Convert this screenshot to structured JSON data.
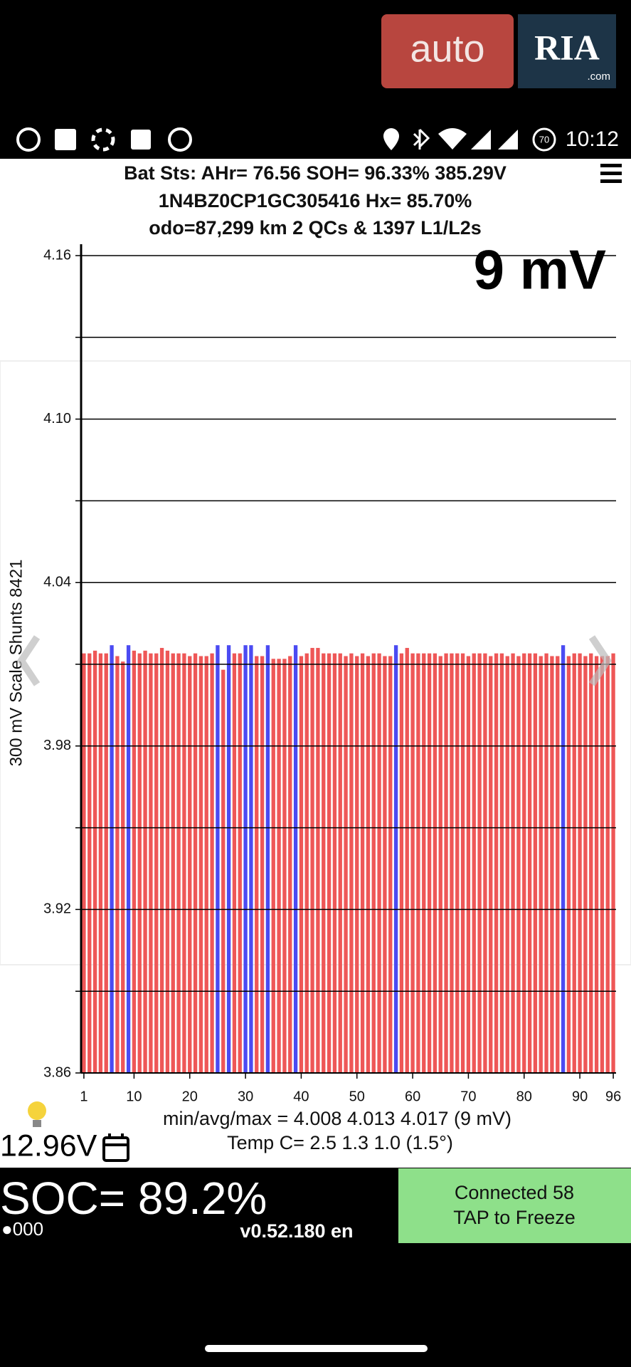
{
  "status_bar": {
    "time": "10:12",
    "battery_badge": "70"
  },
  "logo": {
    "auto": "auto",
    "ria": "RIA",
    "com": ".com"
  },
  "header": {
    "lines": [
      "Bat Sts:  AHr= 76.56  SOH= 96.33%   385.29V",
      "1N4BZ0CP1GC305416   Hx= 85.70%",
      "odo=87,299 km 2 QCs & 1397 L1/L2s"
    ]
  },
  "chart_data": {
    "type": "bar",
    "annotation": "9 mV",
    "y_label": "300 mV Scale  Shunts 8421",
    "x": [
      1,
      2,
      3,
      4,
      5,
      6,
      7,
      8,
      9,
      10,
      11,
      12,
      13,
      14,
      15,
      16,
      17,
      18,
      19,
      20,
      21,
      22,
      23,
      24,
      25,
      26,
      27,
      28,
      29,
      30,
      31,
      32,
      33,
      34,
      35,
      36,
      37,
      38,
      39,
      40,
      41,
      42,
      43,
      44,
      45,
      46,
      47,
      48,
      49,
      50,
      51,
      52,
      53,
      54,
      55,
      56,
      57,
      58,
      59,
      60,
      61,
      62,
      63,
      64,
      65,
      66,
      67,
      68,
      69,
      70,
      71,
      72,
      73,
      74,
      75,
      76,
      77,
      78,
      79,
      80,
      81,
      82,
      83,
      84,
      85,
      86,
      87,
      88,
      89,
      90,
      91,
      92,
      93,
      94,
      95,
      96
    ],
    "values": [
      4.014,
      4.014,
      4.015,
      4.014,
      4.014,
      4.017,
      4.013,
      4.011,
      4.017,
      4.015,
      4.014,
      4.015,
      4.014,
      4.014,
      4.016,
      4.015,
      4.014,
      4.014,
      4.014,
      4.013,
      4.014,
      4.013,
      4.013,
      4.014,
      4.017,
      4.008,
      4.017,
      4.014,
      4.014,
      4.017,
      4.017,
      4.013,
      4.013,
      4.017,
      4.012,
      4.012,
      4.012,
      4.013,
      4.017,
      4.013,
      4.014,
      4.016,
      4.016,
      4.014,
      4.014,
      4.014,
      4.014,
      4.013,
      4.014,
      4.013,
      4.014,
      4.013,
      4.014,
      4.014,
      4.013,
      4.013,
      4.017,
      4.014,
      4.016,
      4.014,
      4.014,
      4.014,
      4.014,
      4.014,
      4.013,
      4.014,
      4.014,
      4.014,
      4.014,
      4.013,
      4.014,
      4.014,
      4.014,
      4.013,
      4.014,
      4.014,
      4.013,
      4.014,
      4.013,
      4.014,
      4.014,
      4.014,
      4.013,
      4.014,
      4.013,
      4.013,
      4.017,
      4.013,
      4.014,
      4.014,
      4.013,
      4.014,
      4.013,
      4.013,
      4.013,
      4.014
    ],
    "colors": [
      "#ee5757",
      "#ee5757",
      "#ee5757",
      "#ee5757",
      "#ee5757",
      "#4b4bf2",
      "#ee5757",
      "#ee5757",
      "#4b4bf2",
      "#ee5757",
      "#ee5757",
      "#ee5757",
      "#ee5757",
      "#ee5757",
      "#ee5757",
      "#ee5757",
      "#ee5757",
      "#ee5757",
      "#ee5757",
      "#ee5757",
      "#ee5757",
      "#ee5757",
      "#ee5757",
      "#ee5757",
      "#4b4bf2",
      "#ee5757",
      "#4b4bf2",
      "#ee5757",
      "#ee5757",
      "#4b4bf2",
      "#4b4bf2",
      "#ee5757",
      "#ee5757",
      "#4b4bf2",
      "#ee5757",
      "#ee5757",
      "#ee5757",
      "#ee5757",
      "#4b4bf2",
      "#ee5757",
      "#ee5757",
      "#ee5757",
      "#ee5757",
      "#ee5757",
      "#ee5757",
      "#ee5757",
      "#ee5757",
      "#ee5757",
      "#ee5757",
      "#ee5757",
      "#ee5757",
      "#ee5757",
      "#ee5757",
      "#ee5757",
      "#ee5757",
      "#ee5757",
      "#4b4bf2",
      "#ee5757",
      "#ee5757",
      "#ee5757",
      "#ee5757",
      "#ee5757",
      "#ee5757",
      "#ee5757",
      "#ee5757",
      "#ee5757",
      "#ee5757",
      "#ee5757",
      "#ee5757",
      "#ee5757",
      "#ee5757",
      "#ee5757",
      "#ee5757",
      "#ee5757",
      "#ee5757",
      "#ee5757",
      "#ee5757",
      "#ee5757",
      "#ee5757",
      "#ee5757",
      "#ee5757",
      "#ee5757",
      "#ee5757",
      "#ee5757",
      "#ee5757",
      "#ee5757",
      "#4b4bf2",
      "#ee5757",
      "#ee5757",
      "#ee5757",
      "#ee5757",
      "#ee5757",
      "#ee5757",
      "#ee5757",
      "#ee5757",
      "#ee5757"
    ],
    "xlim": [
      0.5,
      96.5
    ],
    "xticks": [
      1,
      10,
      20,
      30,
      40,
      50,
      60,
      70,
      80,
      90,
      96
    ],
    "ylim": [
      3.86,
      4.16
    ],
    "yticks": [
      4.16,
      {
        "value": 4.1,
        "label": "4.10"
      },
      4.04,
      3.98,
      3.92,
      3.86
    ],
    "minor_yticks": [
      4.13,
      4.07,
      4.01,
      3.95,
      3.89
    ],
    "grid": true
  },
  "footer": {
    "stats": "min/avg/max = 4.008 4.013 4.017  (9 mV)",
    "temp": "Temp C= 2.5  1.3  1.0  (1.5°)",
    "aux_voltage": "12.96V",
    "soc": "SOC= 89.2%",
    "dots": "●000",
    "version": "v0.52.180 en",
    "button": [
      "Connected 58",
      "TAP to Freeze"
    ]
  }
}
